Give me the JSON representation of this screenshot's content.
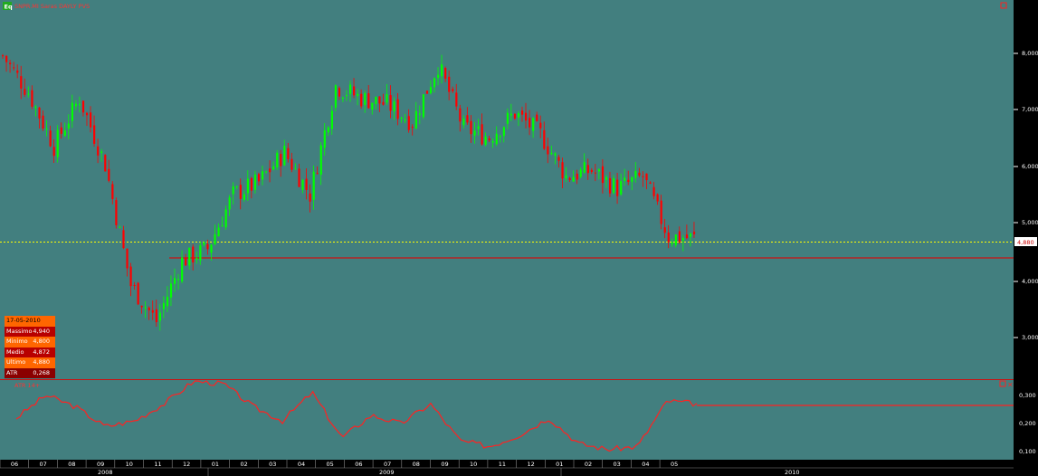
{
  "window": {
    "icon_label": "Eq",
    "title": "SNPR.MI Saras DAYLY PVS",
    "indicator_title": "ATR 14+",
    "close_box": "×"
  },
  "price_axis": {
    "ticks": [
      "8,000",
      "7,000",
      "6,000",
      "5,000",
      "4,000",
      "3,000"
    ],
    "last_price_tag": "4,880"
  },
  "atr_axis": {
    "ticks": [
      "0,300",
      "0,200",
      "0,100"
    ]
  },
  "time_axis": {
    "months": [
      "06",
      "07",
      "08",
      "09",
      "10",
      "11",
      "12",
      "01",
      "02",
      "03",
      "04",
      "05",
      "06",
      "07",
      "08",
      "09",
      "10",
      "11",
      "12",
      "01",
      "02",
      "03",
      "04",
      "05"
    ],
    "years": [
      "2008",
      "2009",
      "2010"
    ]
  },
  "info_box": {
    "date": "17-05-2010",
    "rows": [
      {
        "label": "Massimo",
        "value": "4,940",
        "bg": "#b80000"
      },
      {
        "label": "Minimo",
        "value": "4,800",
        "bg": "#ff6600"
      },
      {
        "label": "Medio",
        "value": "4,872",
        "bg": "#b80000"
      },
      {
        "label": "Ultimo",
        "value": "4,880",
        "bg": "#ff6600"
      },
      {
        "label": "ATR",
        "value": "0,268",
        "bg": "#8a0000"
      }
    ],
    "date_bg": "#ff6600"
  },
  "colors": {
    "background": "#427f7f",
    "up_candle": "#00ff00",
    "down_candle": "#ff0000",
    "price_line": "#ffff00",
    "atr_line": "#ff2222",
    "support_line": "#cc1111",
    "axis_panel": "#000000"
  },
  "chart_data": [
    {
      "type": "candlestick",
      "title": "SNPR.MI Saras DAYLY PVS",
      "ylim": [
        2.6,
        8.6
      ],
      "x": [
        "2008-06",
        "2008-07",
        "2008-08",
        "2008-09",
        "2008-10",
        "2008-11",
        "2008-12",
        "2009-01",
        "2009-02",
        "2009-03",
        "2009-04",
        "2009-05",
        "2009-06",
        "2009-07",
        "2009-08",
        "2009-09",
        "2009-10",
        "2009-11",
        "2009-12",
        "2010-01",
        "2010-02",
        "2010-03",
        "2010-04",
        "2010-05"
      ],
      "close_path": [
        7.9,
        7.3,
        6.4,
        7.2,
        6.1,
        4.1,
        3.5,
        4.5,
        4.7,
        5.6,
        5.8,
        6.3,
        5.6,
        7.4,
        7.2,
        7.1,
        6.8,
        7.75,
        6.7,
        6.55,
        6.95,
        6.6,
        5.9,
        6.0,
        5.7,
        5.9,
        4.9,
        4.88
      ],
      "last_price": 4.88,
      "support_level": 4.45
    },
    {
      "type": "line",
      "title": "ATR 14+",
      "ylim": [
        0.07,
        0.34
      ],
      "series": [
        {
          "name": "ATR 14+",
          "values": [
            0.21,
            0.29,
            0.25,
            0.18,
            0.2,
            0.26,
            0.34,
            0.33,
            0.25,
            0.2,
            0.3,
            0.14,
            0.22,
            0.19,
            0.26,
            0.13,
            0.11,
            0.15,
            0.21,
            0.12,
            0.1,
            0.11,
            0.27,
            0.26
          ]
        }
      ]
    }
  ]
}
